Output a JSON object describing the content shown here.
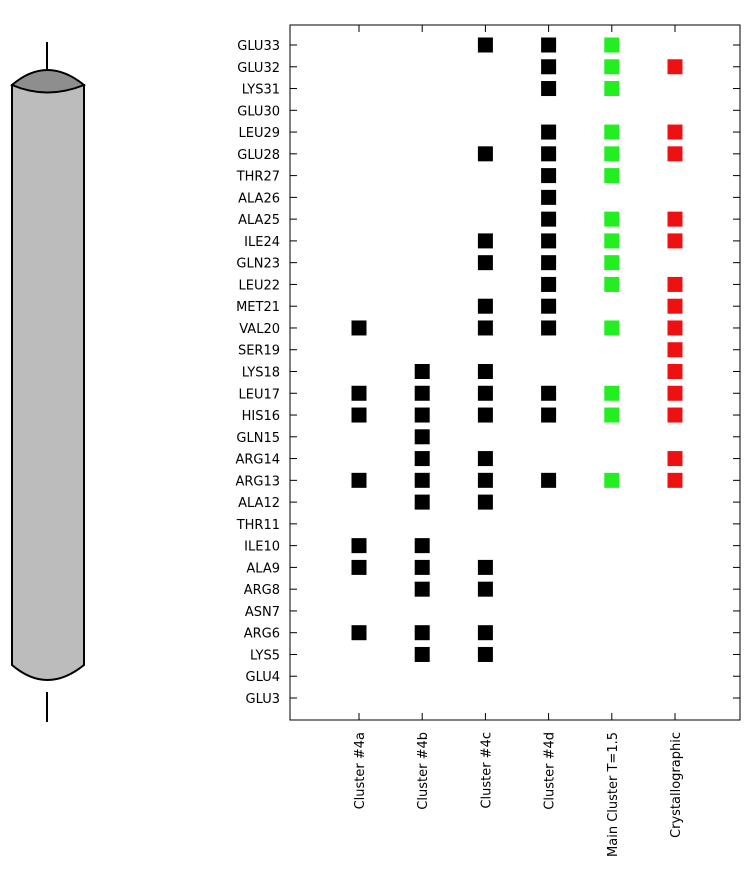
{
  "chart_data": {
    "type": "matrix",
    "rows": [
      "GLU33",
      "GLU32",
      "LYS31",
      "GLU30",
      "LEU29",
      "GLU28",
      "THR27",
      "ALA26",
      "ALA25",
      "ILE24",
      "GLN23",
      "LEU22",
      "MET21",
      "VAL20",
      "SER19",
      "LYS18",
      "LEU17",
      "HIS16",
      "GLN15",
      "ARG14",
      "ARG13",
      "ALA12",
      "THR11",
      "ILE10",
      "ALA9",
      "ARG8",
      "ASN7",
      "ARG6",
      "LYS5",
      "GLU4",
      "GLU3"
    ],
    "series": [
      {
        "name": "Cluster #4a",
        "color": "#000000",
        "values": [
          null,
          null,
          null,
          null,
          null,
          null,
          null,
          null,
          null,
          null,
          null,
          null,
          null,
          1,
          null,
          null,
          1,
          1,
          null,
          null,
          1,
          null,
          null,
          1,
          1,
          null,
          null,
          1,
          null,
          null,
          null
        ]
      },
      {
        "name": "Cluster #4b",
        "color": "#000000",
        "values": [
          null,
          null,
          null,
          null,
          null,
          null,
          null,
          null,
          null,
          null,
          null,
          null,
          null,
          null,
          null,
          1,
          1,
          1,
          1,
          1,
          1,
          1,
          null,
          1,
          1,
          1,
          null,
          1,
          1,
          null,
          null
        ]
      },
      {
        "name": "Cluster #4c",
        "color": "#000000",
        "values": [
          1,
          null,
          null,
          null,
          null,
          1,
          null,
          null,
          null,
          1,
          1,
          null,
          1,
          1,
          null,
          1,
          1,
          1,
          null,
          1,
          1,
          1,
          null,
          null,
          1,
          1,
          null,
          1,
          1,
          null,
          null
        ]
      },
      {
        "name": "Cluster #4d",
        "color": "#000000",
        "values": [
          1,
          1,
          1,
          null,
          1,
          1,
          1,
          1,
          1,
          1,
          1,
          1,
          1,
          1,
          null,
          null,
          1,
          1,
          null,
          null,
          1,
          null,
          null,
          null,
          null,
          null,
          null,
          null,
          null,
          null,
          null
        ]
      },
      {
        "name": "Main Cluster T=1.5",
        "color": "#22ee22",
        "values": [
          1,
          1,
          1,
          null,
          1,
          1,
          1,
          null,
          1,
          1,
          1,
          1,
          null,
          1,
          null,
          null,
          1,
          1,
          null,
          null,
          1,
          null,
          null,
          null,
          null,
          null,
          null,
          null,
          null,
          null,
          null
        ]
      },
      {
        "name": "Crystallographic",
        "color": "#ee1111",
        "values": [
          null,
          1,
          null,
          null,
          1,
          1,
          null,
          null,
          1,
          1,
          null,
          1,
          1,
          1,
          1,
          1,
          1,
          1,
          null,
          1,
          1,
          null,
          null,
          null,
          null,
          null,
          null,
          null,
          null,
          null,
          null
        ]
      }
    ]
  }
}
